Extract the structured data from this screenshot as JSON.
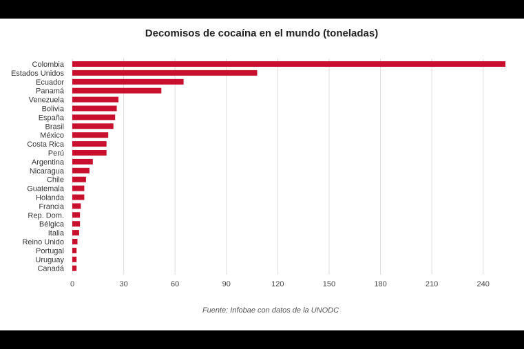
{
  "chart_data": {
    "type": "bar",
    "orientation": "horizontal",
    "title": "Decomisos de cocaína en el mundo (toneladas)",
    "source": "Fuente: Infobae con datos de la UNODC",
    "categories": [
      "Colombia",
      "Estados Unidos",
      "Ecuador",
      "Panamá",
      "Venezuela",
      "Bolivia",
      "España",
      "Brasil",
      "México",
      "Costa Rica",
      "Perú",
      "Argentina",
      "Nicaragua",
      "Chile",
      "Guatemala",
      "Holanda",
      "Francia",
      "Rep. Dom.",
      "Bélgica",
      "Italia",
      "Reino Unido",
      "Portugal",
      "Uruguay",
      "Canadá"
    ],
    "values": [
      253,
      108,
      65,
      52,
      27,
      26,
      25,
      24,
      21,
      20,
      20,
      12,
      10,
      8,
      7,
      7,
      5,
      4.5,
      4.5,
      4,
      3,
      2.5,
      2.5,
      2.5
    ],
    "xlim": [
      0,
      253
    ],
    "xticks": [
      0,
      30,
      60,
      90,
      120,
      150,
      180,
      210,
      240
    ],
    "grid": true,
    "bar_color": "#c8102e",
    "grid_color": "#dddddd"
  }
}
